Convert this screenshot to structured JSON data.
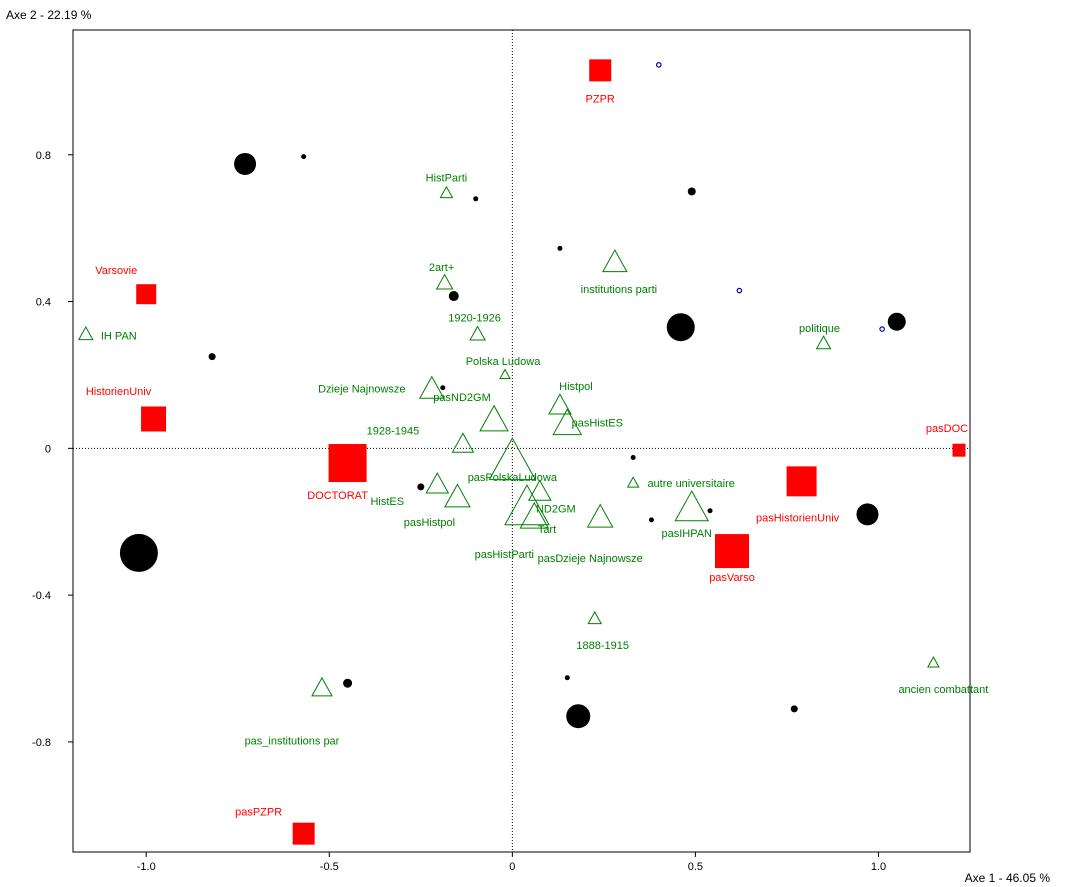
{
  "chart_data": {
    "type": "scatter",
    "x_axis_title": "Axe 1  -  46.05 %",
    "y_axis_title": "Axe 2  -  22.19 %",
    "xlim": [
      -1.2,
      1.25
    ],
    "ylim": [
      -1.1,
      1.14
    ],
    "x_ticks": [
      {
        "value": -1.0,
        "label": "-1.0"
      },
      {
        "value": -0.5,
        "label": "-0.5"
      },
      {
        "value": 0,
        "label": "0"
      },
      {
        "value": 0.5,
        "label": "0.5"
      },
      {
        "value": 1.0,
        "label": "1.0"
      }
    ],
    "y_ticks": [
      {
        "value": 0.8,
        "label": "0.8"
      },
      {
        "value": 0.4,
        "label": "0.4"
      },
      {
        "value": 0,
        "label": "0"
      },
      {
        "value": -0.4,
        "label": "-0.4"
      },
      {
        "value": -0.8,
        "label": "-0.8"
      }
    ],
    "colors": {
      "active": "#ff0000",
      "supplementary": "#008000",
      "individuals": "#000000",
      "minor": "#0000aa"
    },
    "active_categories": [
      {
        "label": "PZPR",
        "x": 0.24,
        "y": 1.03,
        "size": 22
      },
      {
        "label": "Varsovie",
        "x": -1.0,
        "y": 0.42,
        "size": 20
      },
      {
        "label": "HistorienUniv",
        "x": -0.98,
        "y": 0.08,
        "size": 25
      },
      {
        "label": "DOCTORAT",
        "x": -0.45,
        "y": -0.04,
        "size": 38
      },
      {
        "label": "pasDOC",
        "x": 1.22,
        "y": -0.005,
        "size": 13
      },
      {
        "label": "pasHistorienUniv",
        "x": 0.79,
        "y": -0.09,
        "size": 30
      },
      {
        "label": "pasVarso",
        "x": 0.6,
        "y": -0.28,
        "size": 34
      },
      {
        "label": "pasPZPR",
        "x": -0.57,
        "y": -1.05,
        "size": 22
      }
    ],
    "supplementary_categories": [
      {
        "label": "HistParti",
        "x": -0.18,
        "y": 0.695,
        "size": 12
      },
      {
        "label": "2art+",
        "x": -0.185,
        "y": 0.45,
        "size": 16
      },
      {
        "label": "institutions parti",
        "x": 0.28,
        "y": 0.505,
        "size": 24
      },
      {
        "label": "1920-1926",
        "x": -0.095,
        "y": 0.31,
        "size": 15
      },
      {
        "label": "IH PAN",
        "x": -1.165,
        "y": 0.31,
        "size": 14
      },
      {
        "label": "politique",
        "x": 0.85,
        "y": 0.285,
        "size": 14
      },
      {
        "label": "Polska Ludowa",
        "x": -0.02,
        "y": 0.2,
        "size": 10
      },
      {
        "label": "Dzieje Najnowsze",
        "x": -0.22,
        "y": 0.16,
        "size": 24
      },
      {
        "label": "pasND2GM",
        "x": -0.05,
        "y": 0.075,
        "size": 28
      },
      {
        "label": "Histpol",
        "x": 0.13,
        "y": 0.115,
        "size": 22
      },
      {
        "label": "pasHistES",
        "x": 0.15,
        "y": 0.065,
        "size": 28
      },
      {
        "label": "1928-1945",
        "x": -0.135,
        "y": 0.01,
        "size": 21
      },
      {
        "label": "pasPolskaLudowa",
        "x": 0.0,
        "y": -0.04,
        "size": 46
      },
      {
        "label": "autre universitaire",
        "x": 0.33,
        "y": -0.095,
        "size": 11
      },
      {
        "label": "ND2GM",
        "x": 0.075,
        "y": -0.12,
        "size": 22
      },
      {
        "label": "HistES",
        "x": -0.205,
        "y": -0.1,
        "size": 22
      },
      {
        "label": "pasHistpol",
        "x": -0.15,
        "y": -0.135,
        "size": 25
      },
      {
        "label": "Tart",
        "x": 0.04,
        "y": -0.165,
        "size": 44
      },
      {
        "label": "pasIHPAN",
        "x": 0.49,
        "y": -0.165,
        "size": 33
      },
      {
        "label": "pasHistParti",
        "x": 0.06,
        "y": -0.19,
        "size": 28
      },
      {
        "label": "pasDzieje Najnowsze",
        "x": 0.24,
        "y": -0.19,
        "size": 25
      },
      {
        "label": "1888-1915",
        "x": 0.225,
        "y": -0.465,
        "size": 13
      },
      {
        "label": "ancien combattant",
        "x": 1.15,
        "y": -0.585,
        "size": 11
      },
      {
        "label": "pas_institutions par",
        "x": -0.52,
        "y": -0.655,
        "size": 20
      }
    ],
    "individuals": [
      {
        "x": -0.73,
        "y": 0.775,
        "size": 22
      },
      {
        "x": -0.57,
        "y": 0.795,
        "size": 5
      },
      {
        "x": -0.1,
        "y": 0.68,
        "size": 5
      },
      {
        "x": 0.49,
        "y": 0.7,
        "size": 8
      },
      {
        "x": 0.13,
        "y": 0.545,
        "size": 5
      },
      {
        "x": -0.16,
        "y": 0.415,
        "size": 10
      },
      {
        "x": 0.46,
        "y": 0.33,
        "size": 28
      },
      {
        "x": 1.05,
        "y": 0.345,
        "size": 18
      },
      {
        "x": -0.82,
        "y": 0.25,
        "size": 7
      },
      {
        "x": -0.19,
        "y": 0.165,
        "size": 5
      },
      {
        "x": 0.33,
        "y": -0.025,
        "size": 5
      },
      {
        "x": -0.25,
        "y": -0.105,
        "size": 7
      },
      {
        "x": 0.38,
        "y": -0.195,
        "size": 5
      },
      {
        "x": 0.54,
        "y": -0.17,
        "size": 5
      },
      {
        "x": 0.97,
        "y": -0.18,
        "size": 22
      },
      {
        "x": -1.02,
        "y": -0.285,
        "size": 38
      },
      {
        "x": -0.45,
        "y": -0.64,
        "size": 9
      },
      {
        "x": 0.15,
        "y": -0.625,
        "size": 5
      },
      {
        "x": 0.18,
        "y": -0.73,
        "size": 24
      },
      {
        "x": 0.77,
        "y": -0.71,
        "size": 7
      }
    ],
    "minor_points": [
      {
        "x": 0.4,
        "y": 1.045
      },
      {
        "x": 0.62,
        "y": 0.43
      },
      {
        "x": 1.01,
        "y": 0.325
      }
    ]
  }
}
